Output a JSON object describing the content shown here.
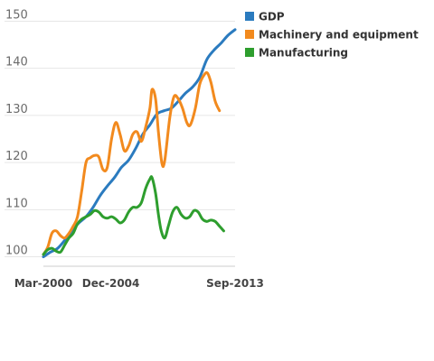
{
  "chart_data": {
    "type": "line",
    "xlim": [
      2000.0,
      2013.5
    ],
    "ylim": [
      98,
      152
    ],
    "yticks": [
      100,
      110,
      120,
      130,
      140,
      150
    ],
    "xticks": [
      {
        "label": "Mar-2000",
        "x": 2000.0
      },
      {
        "label": "Dec-2004",
        "x": 2004.75
      },
      {
        "label": "Sep-2013",
        "x": 2013.5
      }
    ],
    "grid": true,
    "legend_position": "top-right",
    "series": [
      {
        "name": "GDP",
        "color": "#2b7bbf",
        "points": [
          [
            2000.0,
            100.0
          ],
          [
            2000.5,
            101.0
          ],
          [
            2001.0,
            101.8
          ],
          [
            2001.5,
            103.5
          ],
          [
            2002.0,
            105.5
          ],
          [
            2002.5,
            107.2
          ],
          [
            2003.0,
            108.5
          ],
          [
            2003.5,
            110.5
          ],
          [
            2004.0,
            113.0
          ],
          [
            2004.5,
            115.0
          ],
          [
            2005.0,
            116.8
          ],
          [
            2005.5,
            119.0
          ],
          [
            2006.0,
            120.5
          ],
          [
            2006.5,
            123.0
          ],
          [
            2007.0,
            126.0
          ],
          [
            2007.5,
            128.0
          ],
          [
            2008.0,
            130.3
          ],
          [
            2008.5,
            131.0
          ],
          [
            2009.0,
            131.5
          ],
          [
            2009.5,
            133.0
          ],
          [
            2010.0,
            134.7
          ],
          [
            2010.5,
            136.0
          ],
          [
            2011.0,
            138.0
          ],
          [
            2011.5,
            141.8
          ],
          [
            2012.0,
            143.8
          ],
          [
            2012.5,
            145.3
          ],
          [
            2013.0,
            147.0
          ],
          [
            2013.5,
            148.2
          ]
        ]
      },
      {
        "name": "Machinery and equipment",
        "color": "#f28a1e",
        "points": [
          [
            2000.0,
            100.5
          ],
          [
            2000.3,
            102.0
          ],
          [
            2000.6,
            105.0
          ],
          [
            2000.9,
            105.5
          ],
          [
            2001.2,
            104.5
          ],
          [
            2001.5,
            104.0
          ],
          [
            2001.8,
            105.0
          ],
          [
            2002.1,
            106.5
          ],
          [
            2002.4,
            108.5
          ],
          [
            2002.7,
            114.0
          ],
          [
            2003.0,
            120.0
          ],
          [
            2003.3,
            121.0
          ],
          [
            2003.6,
            121.5
          ],
          [
            2003.9,
            121.2
          ],
          [
            2004.2,
            118.5
          ],
          [
            2004.5,
            119.0
          ],
          [
            2004.8,
            125.0
          ],
          [
            2005.1,
            128.5
          ],
          [
            2005.4,
            126.0
          ],
          [
            2005.7,
            122.5
          ],
          [
            2006.0,
            123.5
          ],
          [
            2006.3,
            126.0
          ],
          [
            2006.6,
            126.5
          ],
          [
            2006.9,
            124.5
          ],
          [
            2007.2,
            127.5
          ],
          [
            2007.5,
            131.5
          ],
          [
            2007.65,
            135.5
          ],
          [
            2007.9,
            133.5
          ],
          [
            2008.1,
            126.5
          ],
          [
            2008.35,
            119.8
          ],
          [
            2008.55,
            120.5
          ],
          [
            2008.9,
            129.5
          ],
          [
            2009.2,
            134.0
          ],
          [
            2009.5,
            133.5
          ],
          [
            2009.8,
            131.5
          ],
          [
            2010.1,
            128.5
          ],
          [
            2010.35,
            128.0
          ],
          [
            2010.7,
            131.5
          ],
          [
            2011.0,
            136.5
          ],
          [
            2011.3,
            138.5
          ],
          [
            2011.55,
            139.0
          ],
          [
            2011.8,
            137.0
          ],
          [
            2012.1,
            133.0
          ],
          [
            2012.4,
            131.0
          ]
        ]
      },
      {
        "name": "Manufacturing",
        "color": "#2e9e2e",
        "points": [
          [
            2000.0,
            100.5
          ],
          [
            2000.3,
            101.5
          ],
          [
            2000.6,
            101.8
          ],
          [
            2000.9,
            101.2
          ],
          [
            2001.2,
            101.0
          ],
          [
            2001.5,
            102.5
          ],
          [
            2001.8,
            104.0
          ],
          [
            2002.1,
            105.0
          ],
          [
            2002.4,
            107.0
          ],
          [
            2002.7,
            108.0
          ],
          [
            2003.0,
            108.5
          ],
          [
            2003.3,
            109.0
          ],
          [
            2003.6,
            109.8
          ],
          [
            2003.9,
            109.5
          ],
          [
            2004.2,
            108.5
          ],
          [
            2004.5,
            108.2
          ],
          [
            2004.8,
            108.5
          ],
          [
            2005.1,
            108.0
          ],
          [
            2005.4,
            107.2
          ],
          [
            2005.7,
            107.8
          ],
          [
            2006.0,
            109.5
          ],
          [
            2006.3,
            110.5
          ],
          [
            2006.6,
            110.5
          ],
          [
            2006.9,
            111.5
          ],
          [
            2007.2,
            114.5
          ],
          [
            2007.5,
            116.5
          ],
          [
            2007.65,
            116.8
          ],
          [
            2007.9,
            113.5
          ],
          [
            2008.1,
            109.0
          ],
          [
            2008.3,
            105.5
          ],
          [
            2008.55,
            104.0
          ],
          [
            2008.8,
            106.5
          ],
          [
            2009.1,
            109.5
          ],
          [
            2009.4,
            110.5
          ],
          [
            2009.7,
            109.0
          ],
          [
            2010.0,
            108.2
          ],
          [
            2010.3,
            108.5
          ],
          [
            2010.6,
            109.8
          ],
          [
            2010.9,
            109.5
          ],
          [
            2011.2,
            108.0
          ],
          [
            2011.5,
            107.5
          ],
          [
            2011.8,
            107.8
          ],
          [
            2012.1,
            107.5
          ],
          [
            2012.4,
            106.5
          ],
          [
            2012.7,
            105.5
          ]
        ]
      }
    ]
  }
}
